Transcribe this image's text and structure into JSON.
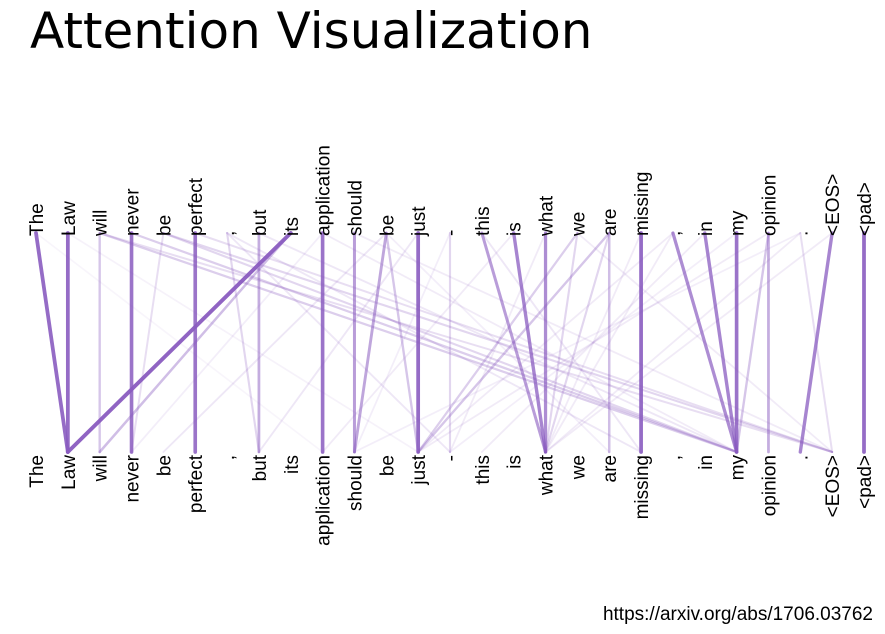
{
  "slide": {
    "title": "Attention Visualization",
    "source_url": "https://arxiv.org/abs/1706.03762"
  },
  "attention": {
    "line_color": "#8a5cc0",
    "tokens": [
      "The",
      "Law",
      "will",
      "never",
      "be",
      "perfect",
      ",",
      "but",
      "its",
      "application",
      "should",
      "be",
      "just",
      "-",
      "this",
      "is",
      "what",
      "we",
      "are",
      "missing",
      ",",
      "in",
      "my",
      "opinion",
      ".",
      "<EOS>",
      "<pad>"
    ],
    "links": [
      {
        "from": 0,
        "to": 1,
        "weight": 0.9
      },
      {
        "from": 1,
        "to": 1,
        "weight": 0.9
      },
      {
        "from": 2,
        "to": 2,
        "weight": 0.35
      },
      {
        "from": 3,
        "to": 3,
        "weight": 0.85
      },
      {
        "from": 4,
        "to": 3,
        "weight": 0.2
      },
      {
        "from": 5,
        "to": 5,
        "weight": 0.85
      },
      {
        "from": 6,
        "to": 7,
        "weight": 0.25
      },
      {
        "from": 7,
        "to": 7,
        "weight": 0.5
      },
      {
        "from": 8,
        "to": 1,
        "weight": 0.95
      },
      {
        "from": 8,
        "to": 2,
        "weight": 0.4
      },
      {
        "from": 9,
        "to": 9,
        "weight": 0.85
      },
      {
        "from": 10,
        "to": 10,
        "weight": 0.6
      },
      {
        "from": 11,
        "to": 10,
        "weight": 0.55
      },
      {
        "from": 11,
        "to": 12,
        "weight": 0.35
      },
      {
        "from": 11,
        "to": 4,
        "weight": 0.15
      },
      {
        "from": 12,
        "to": 12,
        "weight": 0.9
      },
      {
        "from": 13,
        "to": 13,
        "weight": 0.25
      },
      {
        "from": 14,
        "to": 16,
        "weight": 0.6
      },
      {
        "from": 15,
        "to": 16,
        "weight": 0.75
      },
      {
        "from": 16,
        "to": 16,
        "weight": 0.7
      },
      {
        "from": 17,
        "to": 16,
        "weight": 0.25
      },
      {
        "from": 17,
        "to": 12,
        "weight": 0.3
      },
      {
        "from": 18,
        "to": 18,
        "weight": 0.4
      },
      {
        "from": 18,
        "to": 12,
        "weight": 0.35
      },
      {
        "from": 19,
        "to": 19,
        "weight": 0.9
      },
      {
        "from": 20,
        "to": 22,
        "weight": 0.7
      },
      {
        "from": 21,
        "to": 22,
        "weight": 0.75
      },
      {
        "from": 22,
        "to": 22,
        "weight": 0.85
      },
      {
        "from": 23,
        "to": 23,
        "weight": 0.5
      },
      {
        "from": 23,
        "to": 22,
        "weight": 0.35
      },
      {
        "from": 24,
        "to": 25,
        "weight": 0.2
      },
      {
        "from": 25,
        "to": 24,
        "weight": 0.75
      },
      {
        "from": 26,
        "to": 26,
        "weight": 0.9
      },
      {
        "from": 2,
        "to": 22,
        "weight": 0.3
      },
      {
        "from": 3,
        "to": 22,
        "weight": 0.3
      },
      {
        "from": 4,
        "to": 22,
        "weight": 0.25
      },
      {
        "from": 4,
        "to": 25,
        "weight": 0.25
      },
      {
        "from": 5,
        "to": 25,
        "weight": 0.2
      },
      {
        "from": 2,
        "to": 25,
        "weight": 0.2
      },
      {
        "from": 7,
        "to": 22,
        "weight": 0.15
      },
      {
        "from": 9,
        "to": 22,
        "weight": 0.12
      },
      {
        "from": 10,
        "to": 25,
        "weight": 0.12
      },
      {
        "from": 6,
        "to": 19,
        "weight": 0.15
      },
      {
        "from": 6,
        "to": 13,
        "weight": 0.15
      },
      {
        "from": 12,
        "to": 7,
        "weight": 0.15
      },
      {
        "from": 13,
        "to": 10,
        "weight": 0.1
      },
      {
        "from": 14,
        "to": 19,
        "weight": 0.15
      },
      {
        "from": 15,
        "to": 9,
        "weight": 0.12
      },
      {
        "from": 16,
        "to": 13,
        "weight": 0.12
      },
      {
        "from": 18,
        "to": 16,
        "weight": 0.25
      },
      {
        "from": 19,
        "to": 16,
        "weight": 0.12
      },
      {
        "from": 20,
        "to": 16,
        "weight": 0.12
      },
      {
        "from": 20,
        "to": 12,
        "weight": 0.12
      },
      {
        "from": 21,
        "to": 14,
        "weight": 0.12
      },
      {
        "from": 23,
        "to": 12,
        "weight": 0.12
      },
      {
        "from": 24,
        "to": 16,
        "weight": 0.12
      },
      {
        "from": 24,
        "to": 10,
        "weight": 0.1
      },
      {
        "from": 25,
        "to": 16,
        "weight": 0.12
      },
      {
        "from": 22,
        "to": 13,
        "weight": 0.1
      },
      {
        "from": 1,
        "to": 12,
        "weight": 0.08
      },
      {
        "from": 0,
        "to": 9,
        "weight": 0.06
      },
      {
        "from": 17,
        "to": 25,
        "weight": 0.12
      },
      {
        "from": 11,
        "to": 18,
        "weight": 0.1
      },
      {
        "from": 9,
        "to": 3,
        "weight": 0.1
      }
    ]
  }
}
